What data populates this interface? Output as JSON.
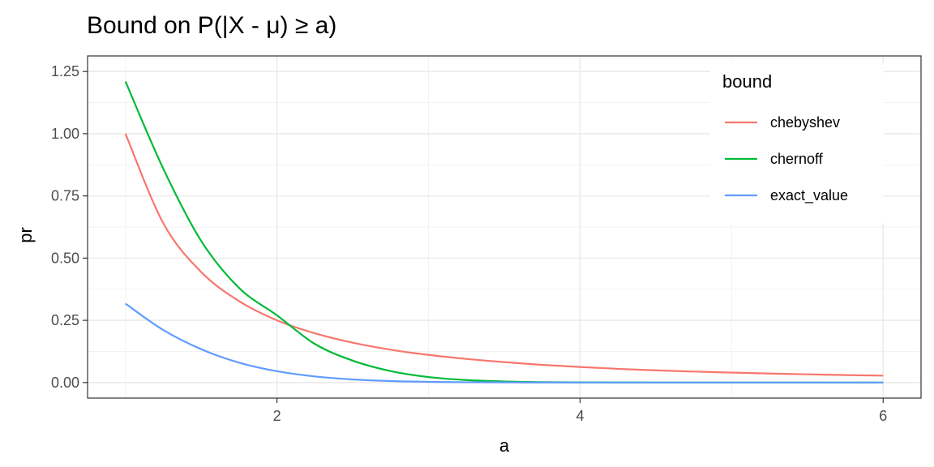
{
  "chart_data": {
    "type": "line",
    "title": "Bound on P(|X - μ) ≥ a)",
    "xlabel": "a",
    "ylabel": "pr",
    "xlim": [
      0.75,
      6.25
    ],
    "ylim": [
      -0.0625,
      1.3125
    ],
    "x_ticks": [
      2,
      4,
      6
    ],
    "x_tick_labels": [
      "2",
      "4",
      "6"
    ],
    "y_ticks": [
      0,
      0.25,
      0.5,
      0.75,
      1.0,
      1.25
    ],
    "y_tick_labels": [
      "0.00",
      "0.25",
      "0.50",
      "0.75",
      "1.00",
      "1.25"
    ],
    "grid": true,
    "legend": {
      "title": "bound",
      "placement": "top-right"
    },
    "x": [
      1.0,
      1.25,
      1.5,
      1.75,
      2.0,
      2.25,
      2.5,
      2.75,
      3.0,
      3.25,
      3.5,
      3.75,
      4.0,
      4.25,
      4.5,
      4.75,
      5.0,
      5.25,
      5.5,
      5.75,
      6.0
    ],
    "series": [
      {
        "name": "chebyshev",
        "color": "#F8766D",
        "values": [
          1.0,
          0.64,
          0.444,
          0.327,
          0.25,
          0.198,
          0.16,
          0.132,
          0.111,
          0.095,
          0.082,
          0.071,
          0.0625,
          0.055,
          0.049,
          0.044,
          0.04,
          0.036,
          0.033,
          0.03,
          0.0278
        ]
      },
      {
        "name": "chernoff",
        "color": "#00BA38",
        "values": [
          1.21,
          0.859,
          0.569,
          0.38,
          0.27,
          0.155,
          0.088,
          0.046,
          0.022,
          0.01,
          0.0043,
          0.0017,
          0.0006,
          0.0002,
          0.0001,
          0.0,
          0.0,
          0.0,
          0.0,
          0.0,
          0.0
        ]
      },
      {
        "name": "exact_value",
        "color": "#619CFF",
        "values": [
          0.317,
          0.211,
          0.134,
          0.08,
          0.0455,
          0.0244,
          0.0124,
          0.006,
          0.0027,
          0.0012,
          0.0005,
          0.0002,
          0.0001,
          0.0,
          0.0,
          0.0,
          0.0,
          0.0,
          0.0,
          0.0,
          0.0
        ]
      }
    ]
  }
}
